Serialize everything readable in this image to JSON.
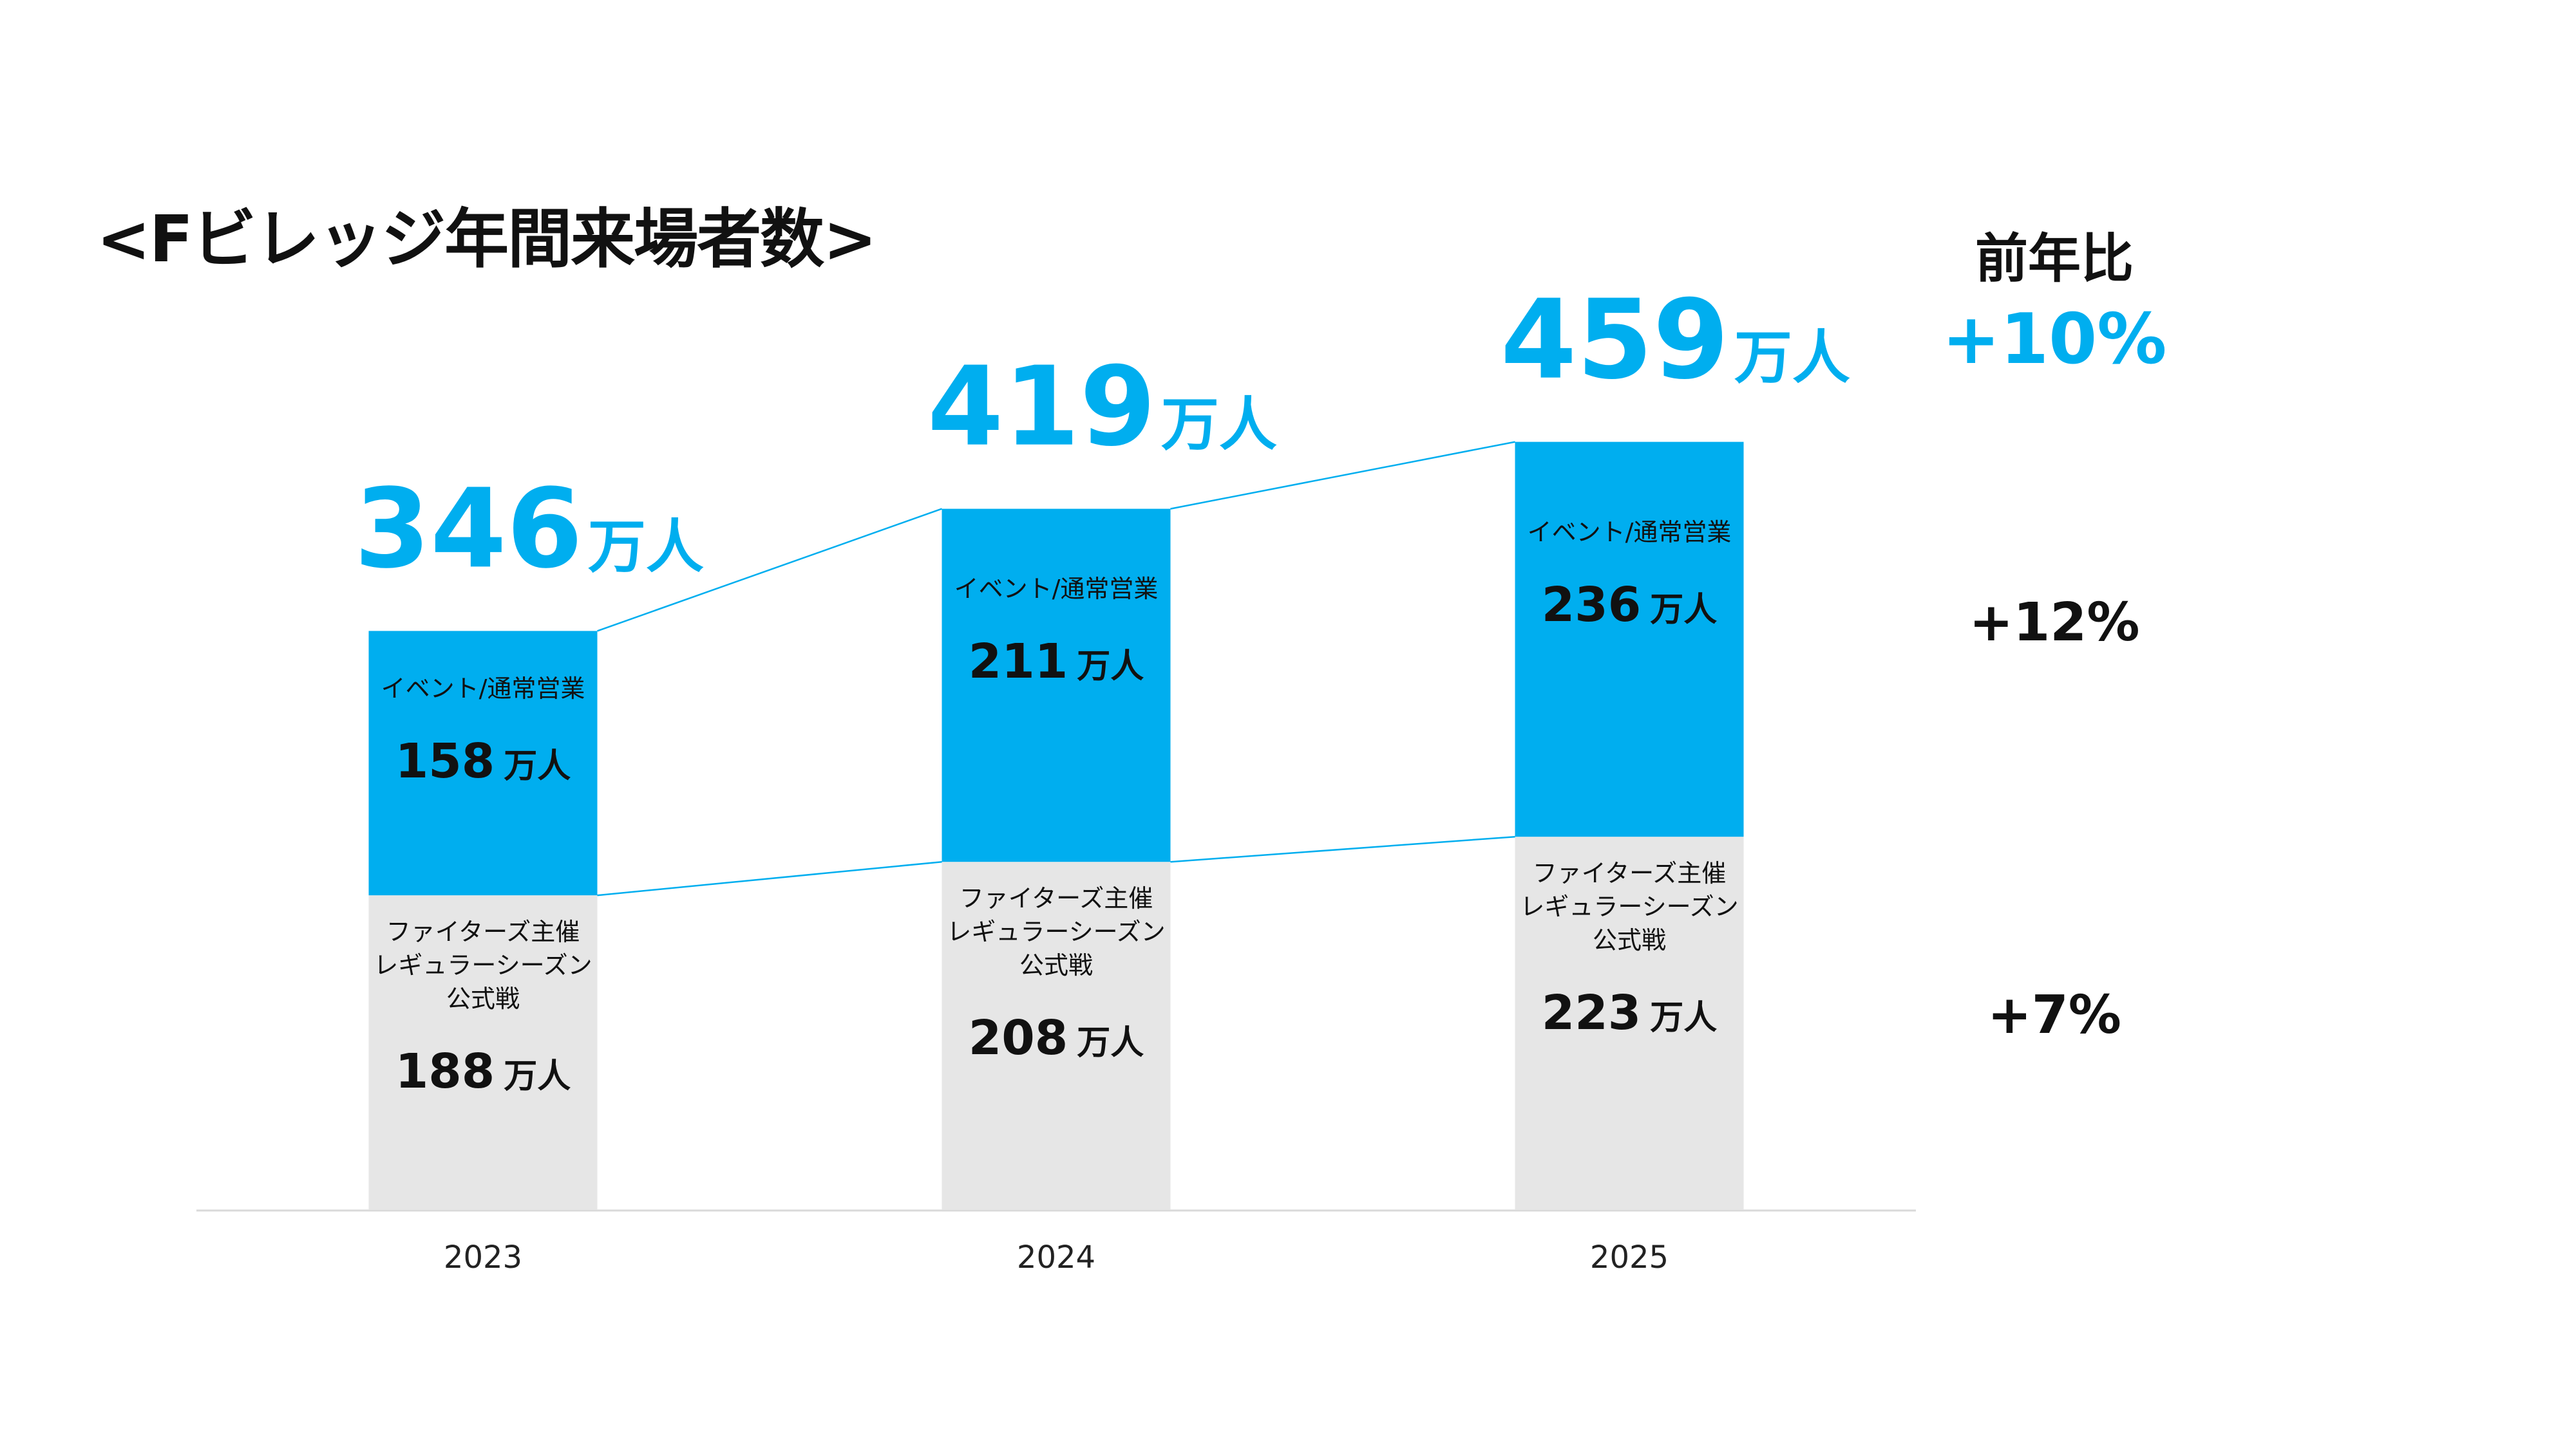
{
  "title": "<Fビレッジ年間来場者数>",
  "unit": "万人",
  "colors": {
    "accent": "#00AEEF",
    "lower_segment": "#E6E6E6",
    "text": "#111111",
    "axis": "#D9D9D9"
  },
  "yoy": {
    "heading": "前年比",
    "total": "+10%",
    "event": "+12%",
    "games": "+7%"
  },
  "chart_data": {
    "type": "bar",
    "stacked": true,
    "categories": [
      "2023",
      "2024",
      "2025"
    ],
    "series": [
      {
        "name": "ファイターズ主催\nレギュラーシーズン\n公式戦",
        "values": [
          188,
          208,
          223
        ],
        "color": "#E6E6E6"
      },
      {
        "name": "イベント/通常営業",
        "values": [
          158,
          211,
          236
        ],
        "color": "#00AEEF"
      }
    ],
    "totals": [
      346,
      419,
      459
    ],
    "connector_lines": true,
    "grid": false,
    "legend": "none"
  }
}
